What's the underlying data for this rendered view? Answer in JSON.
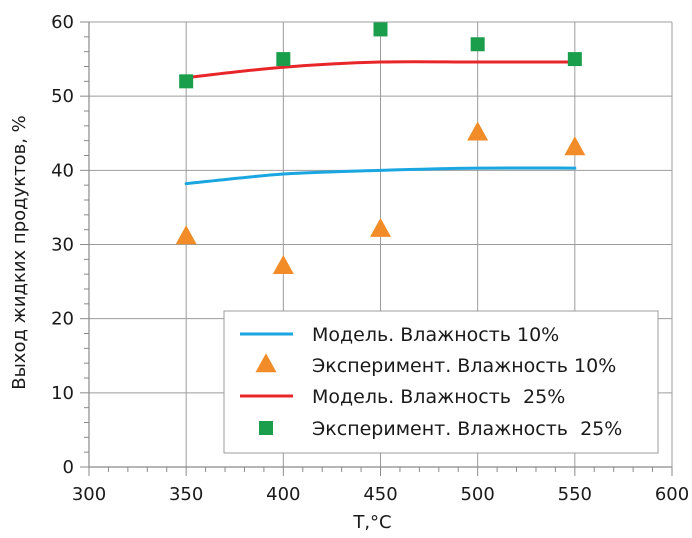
{
  "chart_data": {
    "type": "line",
    "xlabel": "T,°C",
    "ylabel": "Выход жидких продуктов, %",
    "xlim": [
      300,
      600
    ],
    "ylim": [
      0,
      60
    ],
    "x_ticks": [
      300,
      350,
      400,
      450,
      500,
      550,
      600
    ],
    "y_ticks": [
      0,
      10,
      20,
      30,
      40,
      50,
      60
    ],
    "grid": true,
    "legend_position": "bottom-right",
    "series": [
      {
        "name": "Модель. Влажность 10%",
        "kind": "line",
        "color": "#1aa6e0",
        "marker": "none",
        "x": [
          350,
          400,
          450,
          500,
          550
        ],
        "y": [
          38.2,
          39.5,
          40.0,
          40.3,
          40.3
        ]
      },
      {
        "name": "Эксперимент. Влажность 10%",
        "kind": "scatter",
        "color": "#f28c28",
        "marker": "triangle",
        "x": [
          350,
          400,
          450,
          500,
          550
        ],
        "y": [
          31,
          27,
          32,
          45,
          43
        ]
      },
      {
        "name": "Модель. Влажность  25%",
        "kind": "line",
        "color": "#e8262a",
        "marker": "none",
        "x": [
          350,
          400,
          450,
          500,
          550
        ],
        "y": [
          52.5,
          53.9,
          54.6,
          54.6,
          54.6
        ]
      },
      {
        "name": "Эксперимент. Влажность  25%",
        "kind": "scatter",
        "color": "#1a9e4b",
        "marker": "square",
        "x": [
          350,
          400,
          450,
          500,
          550
        ],
        "y": [
          52,
          55,
          59,
          57,
          55
        ]
      }
    ]
  }
}
